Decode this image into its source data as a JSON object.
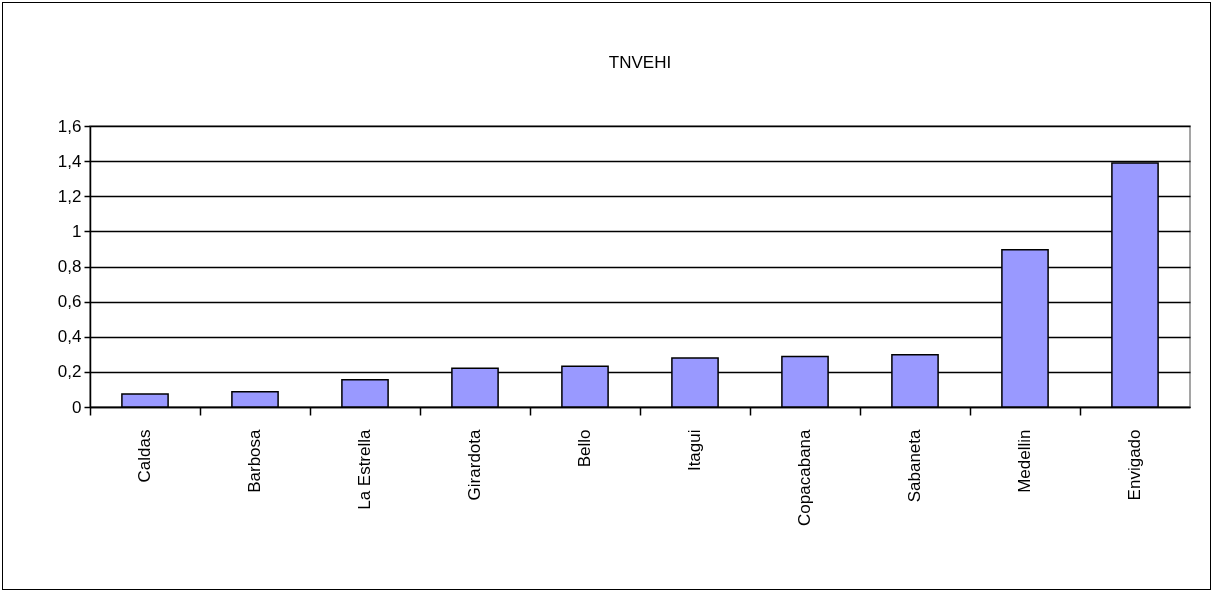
{
  "chart_data": {
    "type": "bar",
    "title": "TNVEHI",
    "categories": [
      "Caldas",
      "Barbosa",
      "La Estrella",
      "Girardota",
      "Bello",
      "Itagui",
      "Copacabana",
      "Sabaneta",
      "Medellin",
      "Envigado"
    ],
    "values": [
      0.074,
      0.087,
      0.155,
      0.221,
      0.232,
      0.279,
      0.287,
      0.298,
      0.896,
      1.389
    ],
    "color": "#9999ff",
    "ylim": [
      0,
      1.6
    ],
    "yticks": [
      {
        "value": 0,
        "label": "0"
      },
      {
        "value": 0.2,
        "label": "0,2"
      },
      {
        "value": 0.4,
        "label": "0,4"
      },
      {
        "value": 0.6,
        "label": "0,6"
      },
      {
        "value": 0.8,
        "label": "0,8"
      },
      {
        "value": 1,
        "label": "1"
      },
      {
        "value": 1.2,
        "label": "1,2"
      },
      {
        "value": 1.4,
        "label": "1,4"
      },
      {
        "value": 1.6,
        "label": "1,6"
      }
    ],
    "grid": "y"
  }
}
